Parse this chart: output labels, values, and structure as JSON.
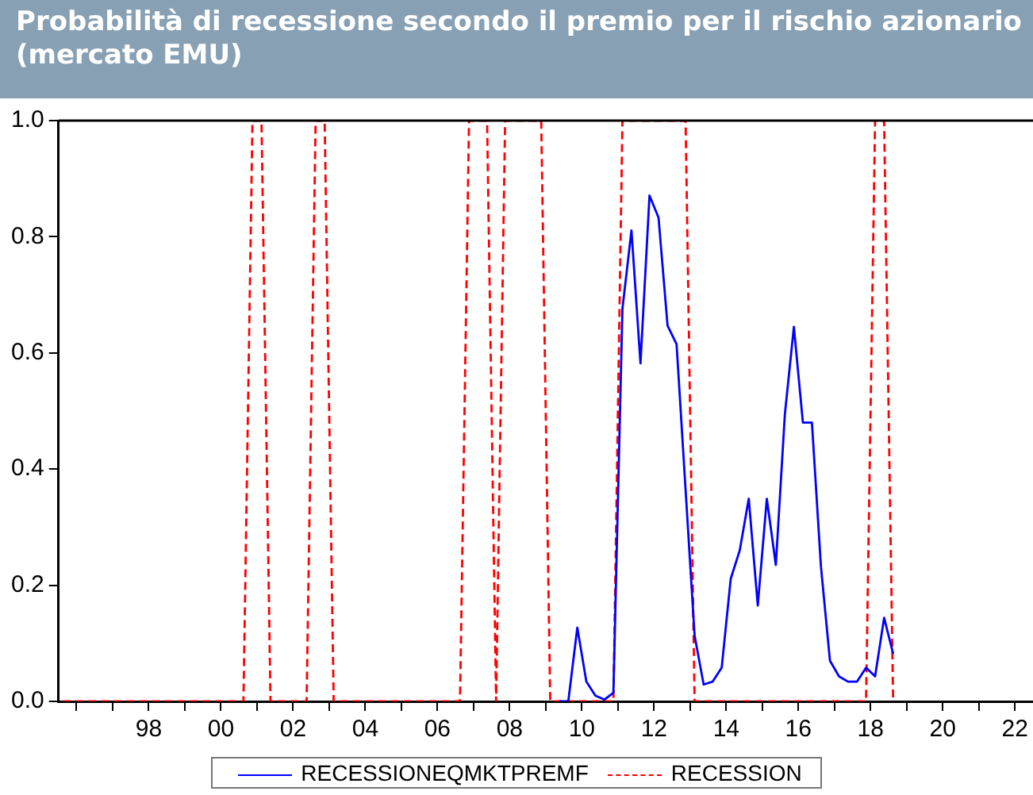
{
  "chart_data": {
    "type": "line",
    "title": "Probabilità di recessione secondo il premio per il rischio azionario (mercato EMU)",
    "xlim": [
      1995.5,
      2022.5
    ],
    "xticks": [
      {
        "value": 1996,
        "label": null
      },
      {
        "value": 1997,
        "label": null
      },
      {
        "value": 1998,
        "label": "98"
      },
      {
        "value": 1999,
        "label": null
      },
      {
        "value": 2000,
        "label": "00"
      },
      {
        "value": 2001,
        "label": null
      },
      {
        "value": 2002,
        "label": "02"
      },
      {
        "value": 2003,
        "label": null
      },
      {
        "value": 2004,
        "label": "04"
      },
      {
        "value": 2005,
        "label": null
      },
      {
        "value": 2006,
        "label": "06"
      },
      {
        "value": 2007,
        "label": null
      },
      {
        "value": 2008,
        "label": "08"
      },
      {
        "value": 2009,
        "label": null
      },
      {
        "value": 2010,
        "label": "10"
      },
      {
        "value": 2011,
        "label": null
      },
      {
        "value": 2012,
        "label": "12"
      },
      {
        "value": 2013,
        "label": null
      },
      {
        "value": 2014,
        "label": "14"
      },
      {
        "value": 2015,
        "label": null
      },
      {
        "value": 2016,
        "label": "16"
      },
      {
        "value": 2017,
        "label": null
      },
      {
        "value": 2018,
        "label": "18"
      },
      {
        "value": 2019,
        "label": null
      },
      {
        "value": 2020,
        "label": "20"
      },
      {
        "value": 2021,
        "label": null
      },
      {
        "value": 2022,
        "label": "22"
      }
    ],
    "ylim": [
      0,
      1
    ],
    "yticks": [
      {
        "value": 0,
        "label": "0.0"
      },
      {
        "value": 0.2,
        "label": "0.2"
      },
      {
        "value": 0.4,
        "label": "0.4"
      },
      {
        "value": 0.6,
        "label": "0.6"
      },
      {
        "value": 0.8,
        "label": "0.8"
      },
      {
        "value": 1,
        "label": "1.0"
      }
    ],
    "legend": "bottom",
    "marker": "none",
    "series": [
      {
        "name": "RECESSIONEQMKTPREMF",
        "color": "#0000ff",
        "line_style": "solid",
        "x": [
          2009.375,
          2009.625,
          2009.875,
          2010.125,
          2010.375,
          2010.625,
          2010.875,
          2011.125,
          2011.375,
          2011.625,
          2011.875,
          2012.125,
          2012.375,
          2012.625,
          2012.875,
          2013.125,
          2013.375,
          2013.625,
          2013.875,
          2014.125,
          2014.375,
          2014.625,
          2014.875,
          2015.125,
          2015.375,
          2015.625,
          2015.875,
          2016.125,
          2016.375,
          2016.625,
          2016.875,
          2017.125,
          2017.375,
          2017.625,
          2017.875,
          2018.125,
          2018.375,
          2018.625
        ],
        "values": [
          0,
          0,
          0.127,
          0.034,
          0.01,
          0.003,
          0.015,
          0.676,
          0.811,
          0.582,
          0.871,
          0.833,
          0.647,
          0.615,
          0.364,
          0.113,
          0.029,
          0.034,
          0.058,
          0.211,
          0.26,
          0.349,
          0.165,
          0.349,
          0.235,
          0.494,
          0.645,
          0.48,
          0.48,
          0.232,
          0.07,
          0.043,
          0.034,
          0.034,
          0.058,
          0.043,
          0.144,
          0.082
        ]
      },
      {
        "name": "RECESSION",
        "color": "#ff0000",
        "line_style": "dashed",
        "x": [
          1995.625,
          2000.625,
          2000.875,
          2001.125,
          2001.375,
          2002.375,
          2002.625,
          2002.875,
          2003.125,
          2006.625,
          2006.875,
          2007.375,
          2007.625,
          2007.875,
          2008.875,
          2009.125,
          2010.875,
          2011.125,
          2012.875,
          2013.125,
          2017.875,
          2018.125,
          2018.375,
          2018.625
        ],
        "values": [
          0,
          0,
          1,
          1,
          0,
          0,
          1,
          1,
          0,
          0,
          1,
          1,
          0,
          1,
          1,
          0,
          0,
          1,
          1,
          0,
          0,
          1,
          1,
          0
        ]
      }
    ]
  }
}
